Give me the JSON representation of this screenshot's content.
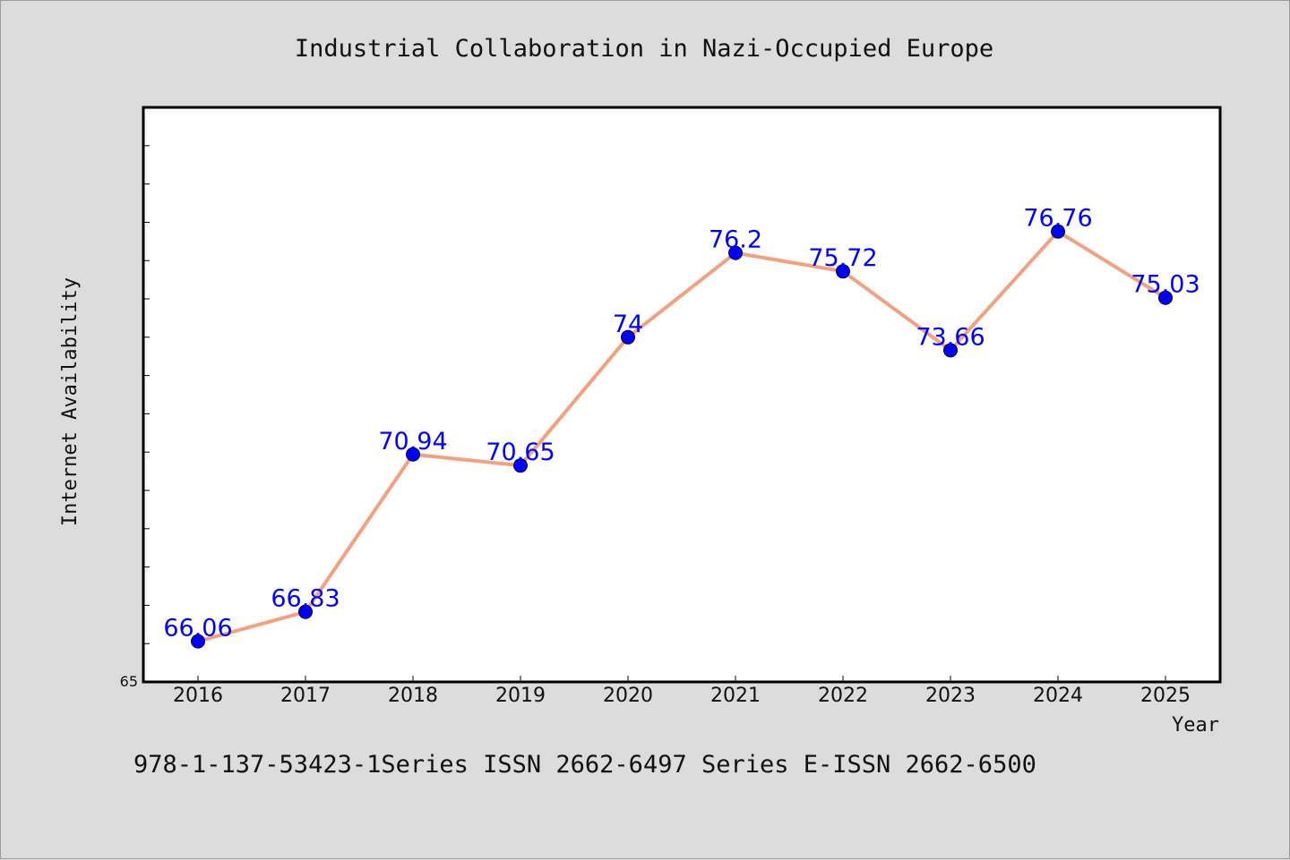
{
  "chart_data": {
    "type": "line",
    "title": "Industrial Collaboration in Nazi-Occupied Europe",
    "xlabel": "Year",
    "ylabel": "Internet Availability",
    "categories": [
      "2016",
      "2017",
      "2018",
      "2019",
      "2020",
      "2021",
      "2022",
      "2023",
      "2024",
      "2025"
    ],
    "series": [
      {
        "values": [
          66.06,
          66.83,
          70.94,
          70.65,
          74,
          76.2,
          75.72,
          73.66,
          76.76,
          75.03
        ],
        "labels": [
          "66.06",
          "66.83",
          "70.94",
          "70.65",
          "74",
          "76.2",
          "75.72",
          "73.66",
          "76.76",
          "75.03"
        ],
        "line_color": "#f4a07f",
        "marker_color": "#0000ff"
      }
    ],
    "ylim": [
      65,
      80
    ],
    "y_tick_labels": [
      "65"
    ],
    "grid": false,
    "legend": "none"
  },
  "footer": "978-1-137-53423-1Series ISSN 2662-6497 Series E-ISSN 2662-6500"
}
